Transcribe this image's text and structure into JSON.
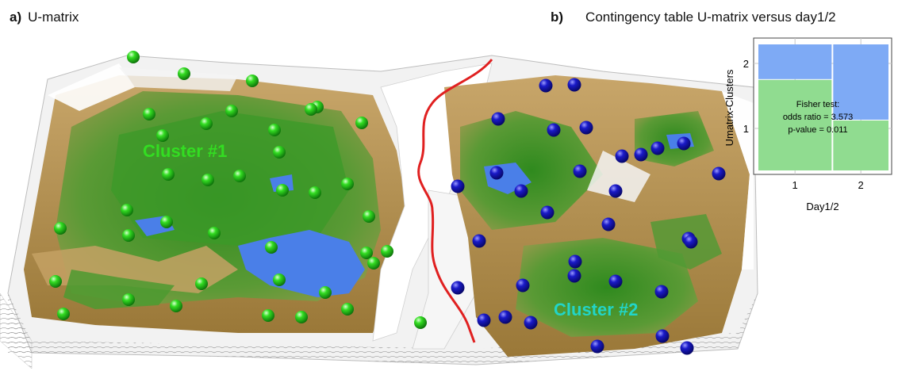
{
  "panel_a": {
    "letter": "a)",
    "title": "U-matrix",
    "clusters": [
      {
        "label": "Cluster #1",
        "color": "#22dd22",
        "label_color": "#33dd22"
      },
      {
        "label": "Cluster #2",
        "color": "#1414b4",
        "label_color": "#22d5c8"
      }
    ],
    "separator_color": "#e02020",
    "terrain_colors": {
      "water": "#4a7fe8",
      "valley": "#3f8f2a",
      "slope": "#b08a4a",
      "ridge": "#ffffff"
    }
  },
  "panel_b": {
    "letter": "b)",
    "title": "Contingency table U-matrix versus day1/2",
    "fisher": [
      "Fisher test:",
      "odds ratio = 3.573",
      "p-value = 0.011"
    ]
  },
  "chart_data": {
    "type": "mosaic",
    "title": "Contingency table U-matrix versus day1/2",
    "xlabel": "Day1/2",
    "ylabel": "Umatrix-Clusters",
    "x_categories": [
      "1",
      "2"
    ],
    "y_categories": [
      "1",
      "2"
    ],
    "x_proportions": [
      0.57,
      0.43
    ],
    "cells": [
      {
        "x": "1",
        "y": "1",
        "proportion_of_column": 0.72,
        "color": "#90dc90"
      },
      {
        "x": "1",
        "y": "2",
        "proportion_of_column": 0.28,
        "color": "#7eaaf5"
      },
      {
        "x": "2",
        "y": "1",
        "proportion_of_column": 0.4,
        "color": "#90dc90"
      },
      {
        "x": "2",
        "y": "2",
        "proportion_of_column": 0.6,
        "color": "#7eaaf5"
      }
    ],
    "grid": true,
    "annotation": {
      "odds_ratio": 3.573,
      "p_value": 0.011
    }
  }
}
